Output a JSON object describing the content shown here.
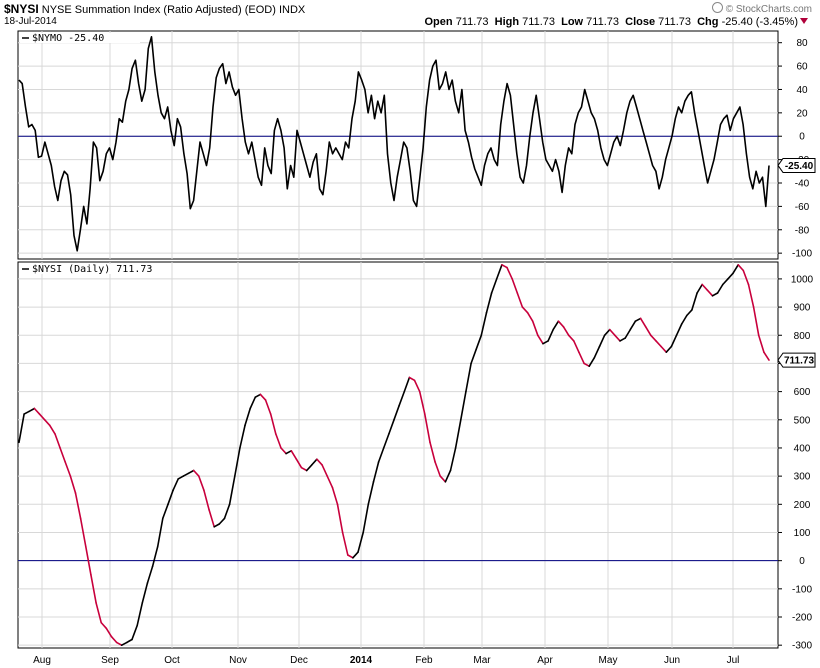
{
  "header": {
    "symbol": "$NYSI",
    "description": "NYSE Summation Index (Ratio Adjusted) (EOD)",
    "exchange": "INDX",
    "date": "18-Jul-2014",
    "watermark": "© StockCharts.com",
    "open_label": "Open",
    "open": "711.73",
    "high_label": "High",
    "high": "711.73",
    "low_label": "Low",
    "low": "711.73",
    "close_label": "Close",
    "close": "711.73",
    "chg_label": "Chg",
    "chg": "-25.40 (-3.45%)",
    "chg_color": "#b0003a"
  },
  "chart_data": [
    {
      "type": "line",
      "panel": "top",
      "label": "$NYMO -25.40",
      "last_value_tag": "-25.40",
      "ylim": [
        -105,
        90
      ],
      "yticks": [
        80,
        60,
        40,
        20,
        0,
        -20,
        -40,
        -60,
        -80,
        -100
      ],
      "zero_line_color": "#00007f",
      "series": [
        {
          "color": "#000000",
          "values": [
            48,
            45,
            25,
            8,
            10,
            5,
            -18,
            -17,
            -5,
            -15,
            -25,
            -43,
            -55,
            -38,
            -30,
            -33,
            -50,
            -85,
            -98,
            -80,
            -60,
            -75,
            -45,
            -5,
            -10,
            -38,
            -30,
            -15,
            -10,
            -20,
            -5,
            15,
            12,
            30,
            40,
            58,
            65,
            45,
            30,
            40,
            75,
            85,
            55,
            35,
            20,
            15,
            25,
            5,
            -8,
            15,
            8,
            -15,
            -32,
            -62,
            -55,
            -30,
            -5,
            -15,
            -25,
            -10,
            25,
            50,
            58,
            62,
            45,
            55,
            42,
            35,
            40,
            15,
            -5,
            -15,
            -5,
            -20,
            -35,
            -42,
            -10,
            -25,
            -32,
            5,
            15,
            5,
            -10,
            -45,
            -25,
            -35,
            5,
            -5,
            -15,
            -25,
            -35,
            -22,
            -15,
            -45,
            -50,
            -30,
            -5,
            -15,
            -10,
            -15,
            -20,
            -5,
            -10,
            15,
            30,
            55,
            48,
            40,
            20,
            35,
            15,
            30,
            20,
            35,
            -15,
            -40,
            -55,
            -35,
            -20,
            -5,
            -10,
            -30,
            -55,
            -60,
            -35,
            -10,
            25,
            48,
            60,
            65,
            40,
            45,
            55,
            40,
            48,
            30,
            20,
            40,
            5,
            -5,
            -18,
            -28,
            -35,
            -42,
            -25,
            -15,
            -10,
            -20,
            -25,
            10,
            30,
            45,
            35,
            10,
            -15,
            -35,
            -40,
            -25,
            0,
            20,
            35,
            15,
            -5,
            -20,
            -25,
            -30,
            -20,
            -30,
            -48,
            -25,
            -10,
            -15,
            10,
            20,
            25,
            40,
            30,
            20,
            15,
            5,
            -10,
            -20,
            -25,
            -15,
            -5,
            0,
            -8,
            5,
            20,
            30,
            35,
            25,
            15,
            5,
            -5,
            -15,
            -25,
            -30,
            -45,
            -35,
            -20,
            -10,
            0,
            15,
            25,
            20,
            30,
            35,
            38,
            20,
            5,
            -10,
            -25,
            -40,
            -30,
            -20,
            -5,
            10,
            15,
            18,
            5,
            15,
            20,
            25,
            10,
            -15,
            -35,
            -45,
            -30,
            -40,
            -35,
            -60,
            -25
          ]
        }
      ]
    },
    {
      "type": "line",
      "panel": "bottom",
      "label": "$NYSI (Daily) 711.73",
      "last_value_tag": "711.73",
      "ylim": [
        -310,
        1060
      ],
      "yticks": [
        1000,
        900,
        800,
        700,
        600,
        500,
        400,
        300,
        200,
        100,
        0,
        -100,
        -200,
        -300
      ],
      "zero_line_color": "#00007f",
      "x_labels": [
        "Aug",
        "Sep",
        "Oct",
        "Nov",
        "Dec",
        "2014",
        "Feb",
        "Mar",
        "Apr",
        "May",
        "Jun",
        "Jul"
      ],
      "up_color": "#000000",
      "down_color": "#c8003c",
      "series": [
        {
          "values": [
            420,
            520,
            530,
            540,
            520,
            500,
            480,
            450,
            400,
            350,
            300,
            240,
            150,
            50,
            -50,
            -150,
            -220,
            -240,
            -270,
            -290,
            -300,
            -290,
            -280,
            -230,
            -150,
            -80,
            -20,
            50,
            150,
            200,
            250,
            290,
            300,
            310,
            320,
            300,
            250,
            180,
            120,
            130,
            150,
            200,
            300,
            400,
            480,
            540,
            580,
            590,
            570,
            520,
            450,
            400,
            380,
            390,
            360,
            330,
            320,
            340,
            360,
            340,
            300,
            260,
            200,
            100,
            20,
            10,
            30,
            100,
            200,
            280,
            350,
            400,
            450,
            500,
            550,
            600,
            650,
            640,
            600,
            520,
            420,
            350,
            300,
            280,
            320,
            400,
            500,
            600,
            700,
            750,
            800,
            880,
            950,
            1000,
            1050,
            1040,
            1000,
            950,
            900,
            880,
            850,
            800,
            770,
            780,
            820,
            850,
            830,
            800,
            780,
            740,
            700,
            690,
            720,
            760,
            800,
            820,
            800,
            780,
            790,
            820,
            850,
            860,
            830,
            800,
            780,
            760,
            740,
            760,
            800,
            840,
            870,
            890,
            950,
            980,
            960,
            940,
            950,
            980,
            1000,
            1020,
            1050,
            1030,
            980,
            900,
            800,
            740,
            711.73
          ]
        }
      ]
    }
  ]
}
